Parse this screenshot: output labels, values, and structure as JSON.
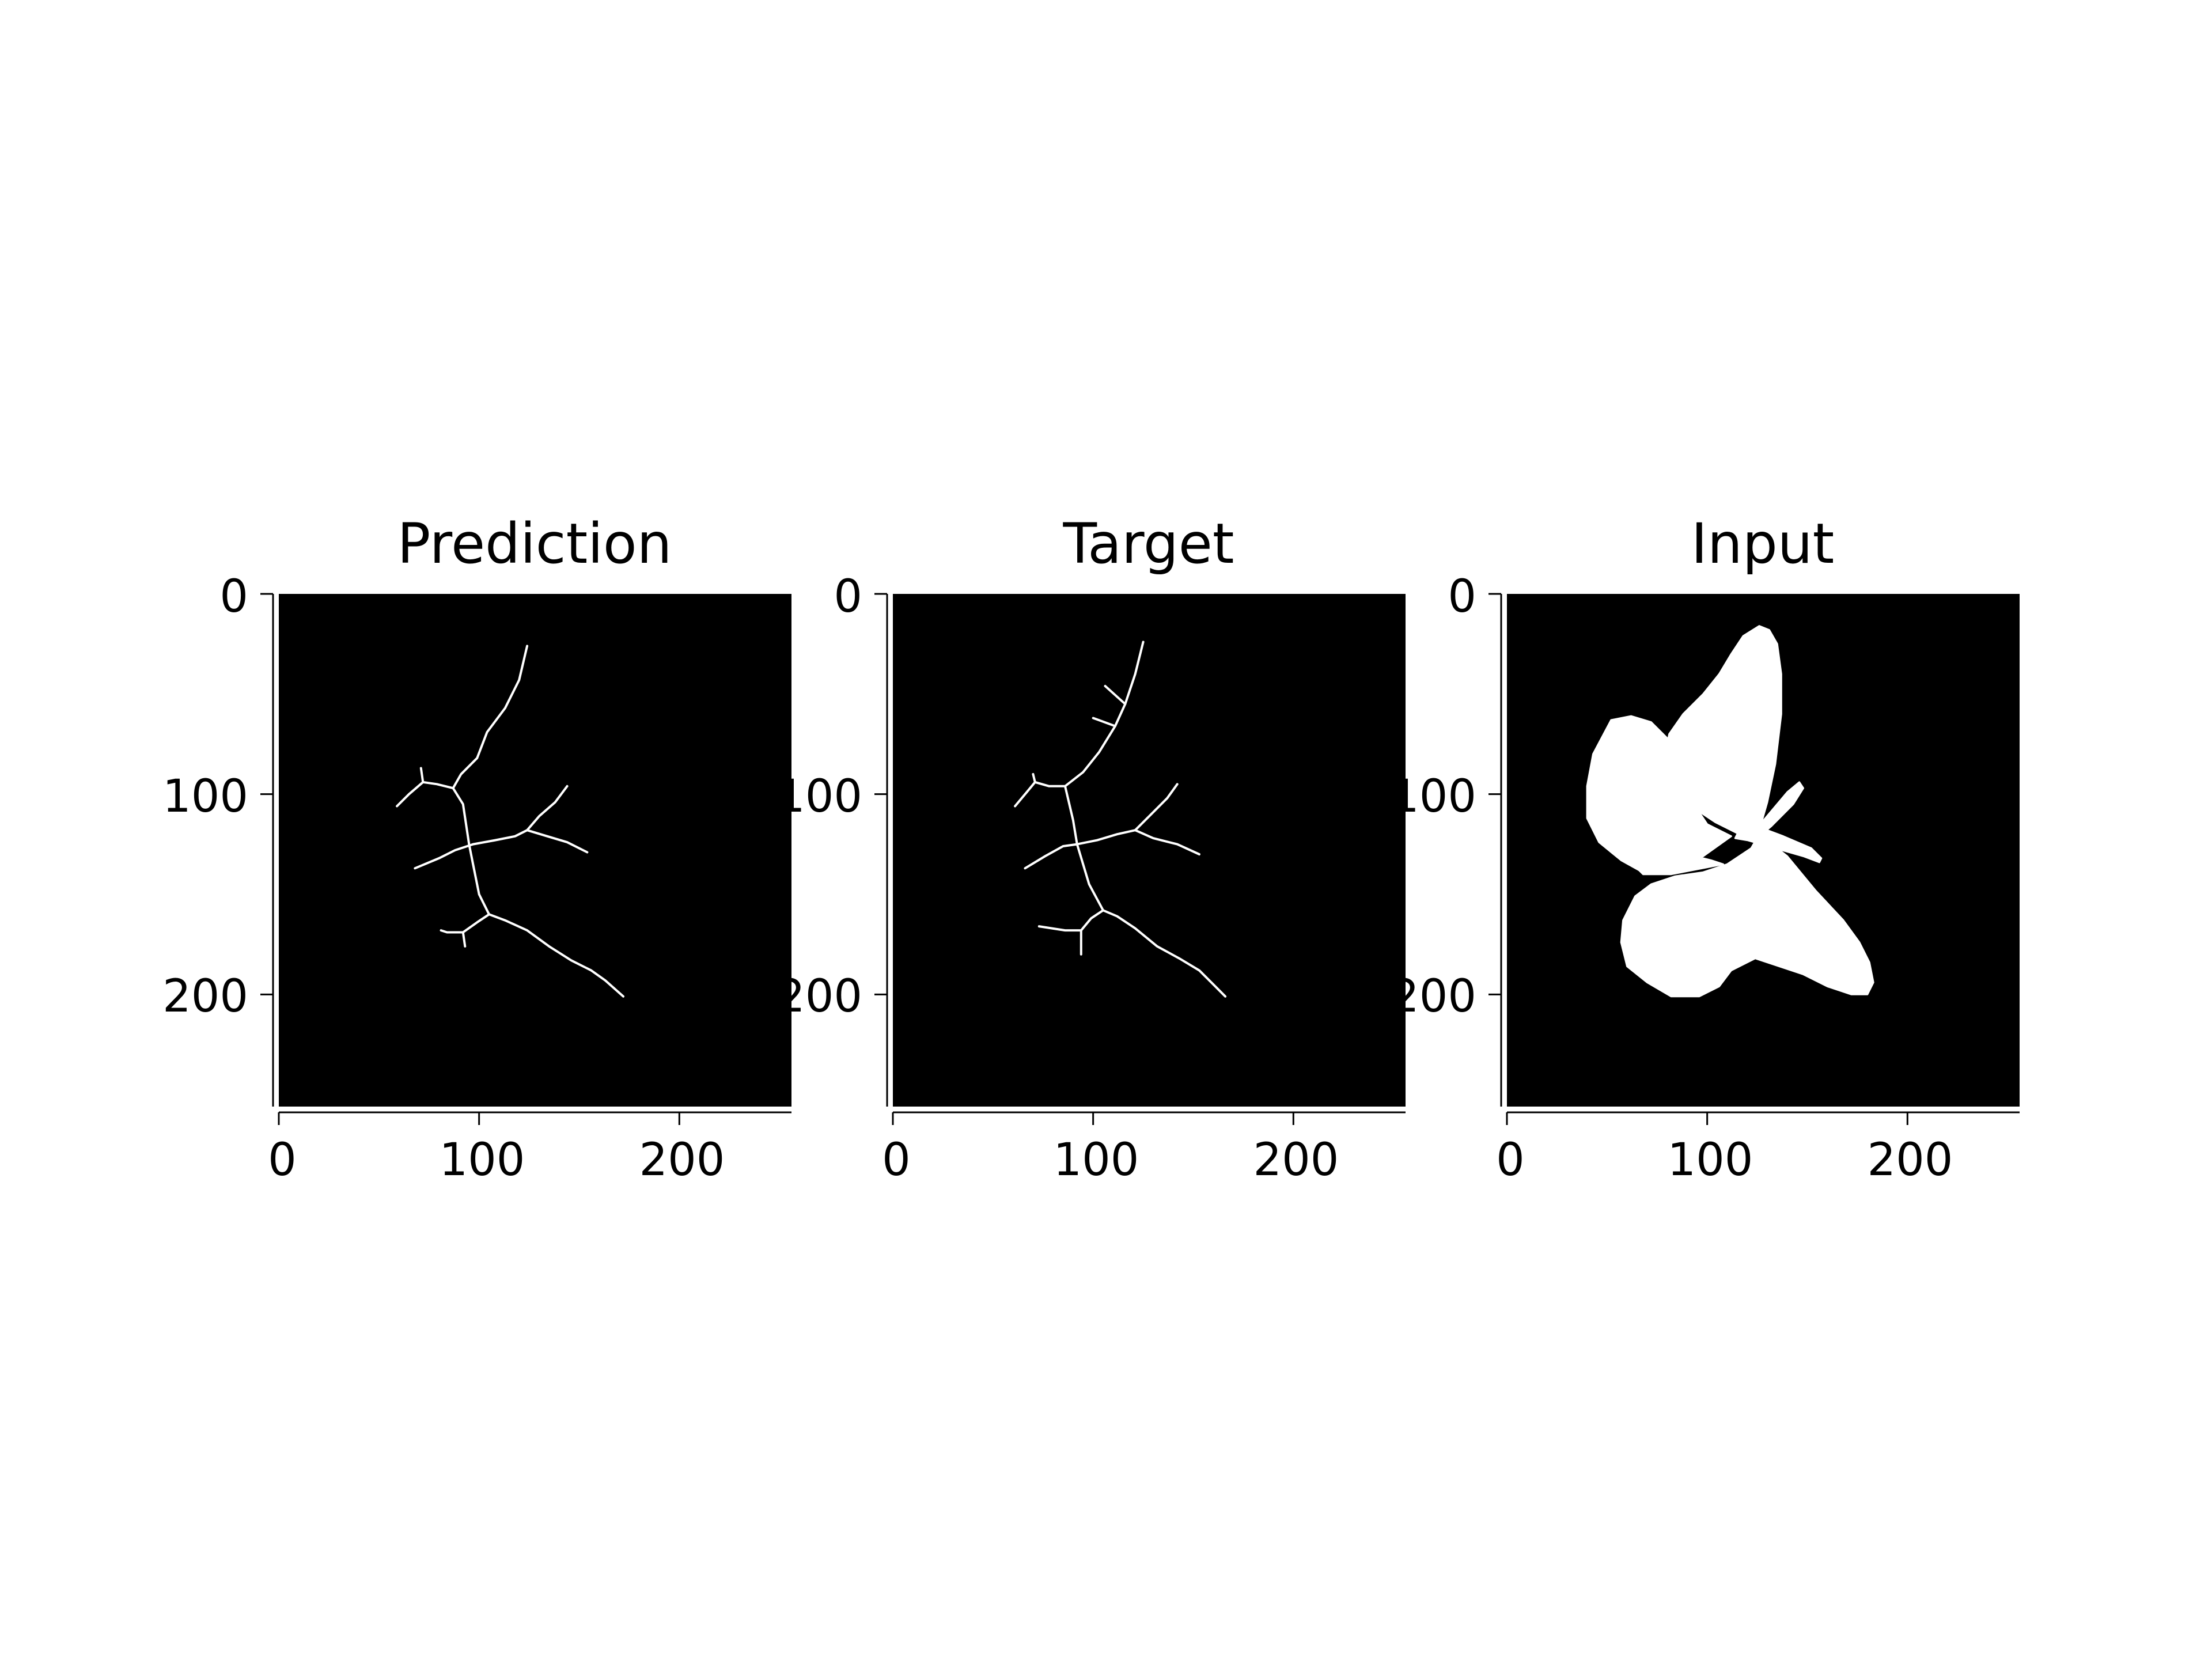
{
  "colors": {
    "image_background": "#000000",
    "foreground": "#ffffff",
    "axis": "#000000",
    "figure_background": "#ffffff"
  },
  "chart_data": [
    {
      "type": "image",
      "title": "Prediction",
      "xlabel": "",
      "ylabel": "",
      "xlim": [
        0,
        256
      ],
      "ylim": [
        256,
        0
      ],
      "xticks": [
        0,
        100,
        200
      ],
      "yticks": [
        0,
        100,
        200
      ],
      "xticklabels": [
        "0",
        "100",
        "200"
      ],
      "yticklabels": [
        "0",
        "100",
        "200"
      ],
      "grid": false,
      "content": "skeleton",
      "strokes": [
        [
          [
            124,
            26
          ],
          [
            120,
            43
          ],
          [
            113,
            57
          ],
          [
            104,
            69
          ],
          [
            99,
            82
          ],
          [
            91,
            90
          ],
          [
            87,
            97
          ],
          [
            92,
            105
          ],
          [
            95,
            125
          ],
          [
            97,
            135
          ],
          [
            100,
            150
          ],
          [
            105,
            160
          ]
        ],
        [
          [
            87,
            97
          ],
          [
            79,
            95
          ],
          [
            72,
            94
          ],
          [
            65,
            100
          ],
          [
            59,
            106
          ]
        ],
        [
          [
            72,
            94
          ],
          [
            71,
            87
          ]
        ],
        [
          [
            68,
            137
          ],
          [
            80,
            132
          ],
          [
            88,
            128
          ],
          [
            97,
            125
          ],
          [
            108,
            123
          ],
          [
            118,
            121
          ],
          [
            124,
            118
          ]
        ],
        [
          [
            124,
            118
          ],
          [
            130,
            111
          ],
          [
            138,
            104
          ],
          [
            144,
            96
          ]
        ],
        [
          [
            124,
            118
          ],
          [
            134,
            121
          ],
          [
            144,
            124
          ],
          [
            154,
            129
          ]
        ],
        [
          [
            105,
            160
          ],
          [
            113,
            163
          ],
          [
            124,
            168
          ],
          [
            135,
            176
          ],
          [
            146,
            183
          ],
          [
            156,
            188
          ],
          [
            163,
            193
          ],
          [
            172,
            201
          ]
        ],
        [
          [
            105,
            160
          ],
          [
            99,
            164
          ],
          [
            92,
            169
          ],
          [
            84,
            169
          ],
          [
            81,
            168
          ]
        ],
        [
          [
            92,
            169
          ],
          [
            93,
            176
          ]
        ]
      ]
    },
    {
      "type": "image",
      "title": "Target",
      "xlabel": "",
      "ylabel": "",
      "xlim": [
        0,
        256
      ],
      "ylim": [
        256,
        0
      ],
      "xticks": [
        0,
        100,
        200
      ],
      "yticks": [
        0,
        100,
        200
      ],
      "xticklabels": [
        "0",
        "100",
        "200"
      ],
      "yticklabels": [
        "0",
        "100",
        "200"
      ],
      "grid": false,
      "content": "skeleton",
      "strokes": [
        [
          [
            125,
            24
          ],
          [
            121,
            40
          ],
          [
            116,
            55
          ],
          [
            111,
            66
          ],
          [
            103,
            79
          ],
          [
            95,
            89
          ],
          [
            86,
            96
          ],
          [
            90,
            113
          ],
          [
            92,
            125
          ],
          [
            98,
            145
          ],
          [
            105,
            158
          ]
        ],
        [
          [
            86,
            96
          ],
          [
            78,
            96
          ],
          [
            71,
            94
          ],
          [
            66,
            100
          ],
          [
            61,
            106
          ]
        ],
        [
          [
            71,
            94
          ],
          [
            70,
            90
          ]
        ],
        [
          [
            66,
            137
          ],
          [
            76,
            131
          ],
          [
            85,
            126
          ],
          [
            92,
            125
          ],
          [
            102,
            123
          ],
          [
            112,
            120
          ],
          [
            121,
            118
          ]
        ],
        [
          [
            121,
            118
          ],
          [
            128,
            111
          ],
          [
            137,
            102
          ],
          [
            142,
            95
          ]
        ],
        [
          [
            121,
            118
          ],
          [
            130,
            122
          ],
          [
            142,
            125
          ],
          [
            153,
            130
          ]
        ],
        [
          [
            116,
            55
          ],
          [
            106,
            46
          ]
        ],
        [
          [
            111,
            66
          ],
          [
            100,
            62
          ]
        ],
        [
          [
            105,
            158
          ],
          [
            112,
            161
          ],
          [
            121,
            167
          ],
          [
            132,
            176
          ],
          [
            143,
            182
          ],
          [
            153,
            188
          ],
          [
            160,
            195
          ],
          [
            166,
            201
          ]
        ],
        [
          [
            105,
            158
          ],
          [
            99,
            162
          ],
          [
            94,
            168
          ],
          [
            86,
            168
          ],
          [
            73,
            166
          ]
        ],
        [
          [
            94,
            168
          ],
          [
            94,
            180
          ]
        ]
      ]
    },
    {
      "type": "image",
      "title": "Input",
      "xlabel": "",
      "ylabel": "",
      "xlim": [
        0,
        256
      ],
      "ylim": [
        256,
        0
      ],
      "xticks": [
        0,
        100,
        200
      ],
      "yticks": [
        0,
        100,
        200
      ],
      "xticklabels": [
        "0",
        "100",
        "200"
      ],
      "yticklabels": [
        "0",
        "100",
        "200"
      ],
      "grid": false,
      "content": "butterfly silhouette",
      "regions": [
        [
          [
            118,
            21
          ],
          [
            126,
            16
          ],
          [
            131,
            18
          ],
          [
            135,
            25
          ],
          [
            137,
            40
          ],
          [
            137,
            60
          ],
          [
            134,
            85
          ],
          [
            130,
            104
          ],
          [
            126,
            118
          ],
          [
            116,
            120
          ],
          [
            104,
            114
          ],
          [
            92,
            106
          ],
          [
            82,
            100
          ],
          [
            78,
            85
          ],
          [
            81,
            70
          ],
          [
            88,
            60
          ],
          [
            98,
            50
          ],
          [
            106,
            40
          ],
          [
            112,
            30
          ]
        ],
        [
          [
            52,
            63
          ],
          [
            62,
            61
          ],
          [
            72,
            64
          ],
          [
            80,
            72
          ],
          [
            85,
            84
          ],
          [
            90,
            100
          ],
          [
            100,
            115
          ],
          [
            112,
            121
          ],
          [
            98,
            131
          ],
          [
            82,
            136
          ],
          [
            66,
            138
          ],
          [
            57,
            133
          ],
          [
            46,
            124
          ],
          [
            40,
            112
          ],
          [
            40,
            96
          ],
          [
            43,
            80
          ]
        ],
        [
          [
            62,
            134
          ],
          [
            72,
            131
          ],
          [
            84,
            130
          ],
          [
            94,
            131
          ],
          [
            102,
            133
          ],
          [
            108,
            135
          ],
          [
            82,
            140
          ],
          [
            68,
            140
          ]
        ],
        [
          [
            122,
            127
          ],
          [
            126,
            120
          ],
          [
            140,
            131
          ],
          [
            154,
            148
          ],
          [
            168,
            163
          ],
          [
            176,
            174
          ],
          [
            181,
            184
          ],
          [
            183,
            194
          ],
          [
            180,
            200
          ],
          [
            172,
            200
          ],
          [
            160,
            196
          ],
          [
            148,
            190
          ],
          [
            136,
            186
          ],
          [
            124,
            182
          ],
          [
            112,
            188
          ],
          [
            106,
            196
          ],
          [
            96,
            201
          ],
          [
            82,
            201
          ],
          [
            70,
            194
          ],
          [
            60,
            186
          ],
          [
            57,
            174
          ],
          [
            58,
            163
          ],
          [
            64,
            151
          ],
          [
            72,
            145
          ],
          [
            84,
            141
          ],
          [
            98,
            139
          ],
          [
            110,
            135
          ]
        ],
        [
          [
            116,
            118
          ],
          [
            122,
            115
          ],
          [
            138,
            121
          ],
          [
            152,
            127
          ],
          [
            157,
            132
          ],
          [
            156,
            134
          ],
          [
            148,
            131
          ],
          [
            134,
            127
          ],
          [
            120,
            123
          ],
          [
            114,
            122
          ]
        ],
        [
          [
            124,
            118
          ],
          [
            140,
            99
          ],
          [
            146,
            94
          ],
          [
            148,
            97
          ],
          [
            143,
            105
          ],
          [
            132,
            116
          ],
          [
            126,
            121
          ]
        ]
      ]
    }
  ]
}
